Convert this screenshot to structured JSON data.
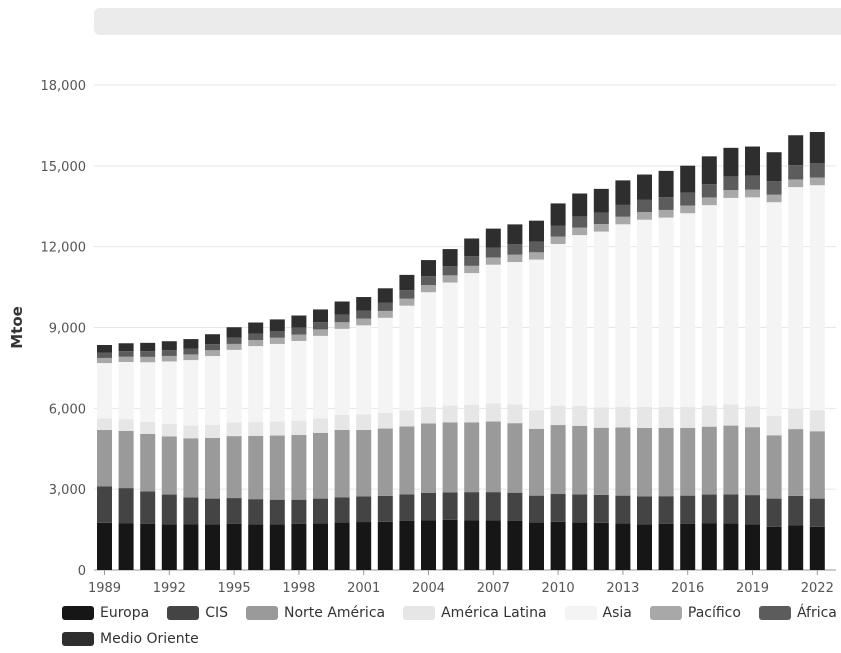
{
  "chart_data": {
    "type": "bar",
    "stacked": true,
    "title": "",
    "xlabel": "",
    "ylabel": "Mtoe",
    "ylim": [
      0,
      18000
    ],
    "yticks": [
      0,
      3000,
      6000,
      9000,
      12000,
      15000,
      18000
    ],
    "ytick_labels": [
      "0",
      "3,000",
      "6,000",
      "9,000",
      "12,000",
      "15,000",
      "18,000"
    ],
    "categories": [
      "1989",
      "1990",
      "1991",
      "1992",
      "1993",
      "1994",
      "1995",
      "1996",
      "1997",
      "1998",
      "1999",
      "2000",
      "2001",
      "2002",
      "2003",
      "2004",
      "2005",
      "2006",
      "2007",
      "2008",
      "2009",
      "2010",
      "2011",
      "2012",
      "2013",
      "2014",
      "2015",
      "2016",
      "2017",
      "2018",
      "2019",
      "2020",
      "2021",
      "2022"
    ],
    "xtick_labels": [
      "1989",
      "1992",
      "1995",
      "1998",
      "2001",
      "2004",
      "2007",
      "2010",
      "2013",
      "2016",
      "2019",
      "2022"
    ],
    "grid": true,
    "legend_position": "bottom",
    "series": [
      {
        "name": "Europa",
        "color": "#161616",
        "values": [
          1750,
          1740,
          1720,
          1700,
          1690,
          1700,
          1720,
          1700,
          1700,
          1710,
          1730,
          1760,
          1780,
          1790,
          1820,
          1850,
          1860,
          1850,
          1840,
          1820,
          1760,
          1790,
          1770,
          1750,
          1730,
          1700,
          1710,
          1720,
          1740,
          1730,
          1700,
          1600,
          1650,
          1600
        ]
      },
      {
        "name": "CIS",
        "color": "#444444",
        "values": [
          1350,
          1300,
          1200,
          1100,
          1000,
          950,
          950,
          930,
          910,
          900,
          920,
          940,
          950,
          960,
          990,
          1010,
          1020,
          1040,
          1050,
          1050,
          1000,
          1030,
          1040,
          1040,
          1030,
          1030,
          1030,
          1040,
          1060,
          1080,
          1080,
          1050,
          1100,
          1050
        ]
      },
      {
        "name": "Norte América",
        "color": "#9a9a9a",
        "values": [
          2100,
          2120,
          2130,
          2160,
          2200,
          2250,
          2300,
          2350,
          2380,
          2400,
          2440,
          2500,
          2470,
          2500,
          2520,
          2580,
          2600,
          2590,
          2620,
          2580,
          2480,
          2560,
          2540,
          2490,
          2530,
          2540,
          2530,
          2510,
          2520,
          2550,
          2520,
          2350,
          2480,
          2500
        ]
      },
      {
        "name": "América Latina",
        "color": "#e6e6e6",
        "values": [
          430,
          440,
          450,
          460,
          470,
          480,
          500,
          510,
          520,
          530,
          540,
          560,
          570,
          580,
          590,
          610,
          630,
          650,
          670,
          690,
          690,
          720,
          740,
          760,
          770,
          780,
          780,
          780,
          790,
          780,
          780,
          720,
          760,
          780
        ]
      },
      {
        "name": "Asia",
        "color": "#f4f4f4",
        "values": [
          2050,
          2120,
          2210,
          2320,
          2430,
          2560,
          2700,
          2820,
          2880,
          2960,
          3060,
          3190,
          3310,
          3530,
          3890,
          4260,
          4560,
          4890,
          5150,
          5290,
          5590,
          6000,
          6340,
          6520,
          6770,
          6950,
          7030,
          7190,
          7430,
          7670,
          7750,
          7930,
          8220,
          8350
        ]
      },
      {
        "name": "Pacífico",
        "color": "#a8a8a8",
        "values": [
          190,
          195,
          200,
          205,
          210,
          215,
          220,
          225,
          230,
          235,
          240,
          245,
          250,
          255,
          258,
          262,
          265,
          268,
          270,
          272,
          270,
          275,
          278,
          280,
          280,
          282,
          283,
          285,
          287,
          288,
          286,
          280,
          285,
          285
        ]
      },
      {
        "name": "África",
        "color": "#5c5c5c",
        "values": [
          200,
          205,
          210,
          215,
          220,
          225,
          230,
          240,
          250,
          260,
          270,
          280,
          290,
          300,
          315,
          330,
          345,
          355,
          370,
          385,
          395,
          410,
          415,
          425,
          440,
          455,
          470,
          480,
          495,
          510,
          520,
          505,
          530,
          540
        ]
      },
      {
        "name": "Medio Oriente",
        "color": "#2e2e2e",
        "values": [
          280,
          295,
          310,
          330,
          350,
          370,
          390,
          410,
          430,
          450,
          470,
          490,
          510,
          540,
          570,
          600,
          630,
          660,
          700,
          740,
          780,
          820,
          850,
          880,
          910,
          940,
          980,
          1000,
          1030,
          1060,
          1080,
          1070,
          1110,
          1150
        ]
      }
    ]
  }
}
